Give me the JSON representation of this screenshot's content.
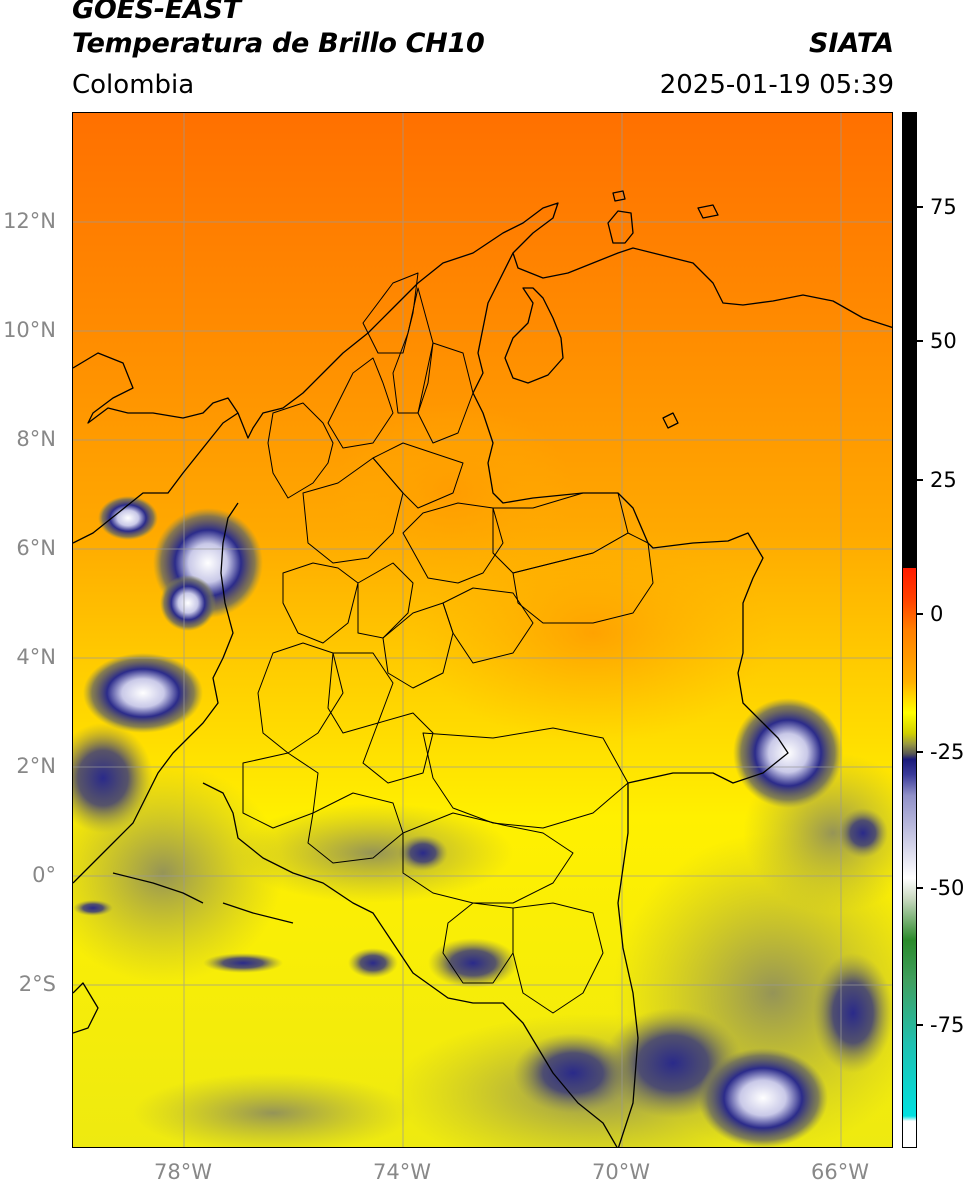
{
  "header": {
    "satellite": "GOES-EAST",
    "product": "Temperatura de Brillo CH10",
    "region": "Colombia",
    "agency": "SIATA",
    "timestamp": "2025-01-19 05:39"
  },
  "map": {
    "lat_labels": [
      "12°N",
      "10°N",
      "8°N",
      "6°N",
      "4°N",
      "2°N",
      "0°",
      "2°S"
    ],
    "lon_labels": [
      "78°W",
      "74°W",
      "70°W",
      "66°W"
    ],
    "extent": {
      "lon_min": -80,
      "lon_max": -65,
      "lat_min": -5,
      "lat_max": 14
    }
  },
  "colorbar": {
    "labels": [
      "75",
      "50",
      "25",
      "0",
      "-25",
      "-50",
      "-75"
    ],
    "range": [
      -95,
      90
    ],
    "colors": {
      "black": "#000000",
      "red": "#ff1a00",
      "orange": "#ff7f00",
      "yellow": "#ffff00",
      "olive": "#9a9a40",
      "navy": "#1a1a7a",
      "white": "#ffffff",
      "green": "#2a8a2a",
      "cyan": "#00e0e0"
    }
  }
}
